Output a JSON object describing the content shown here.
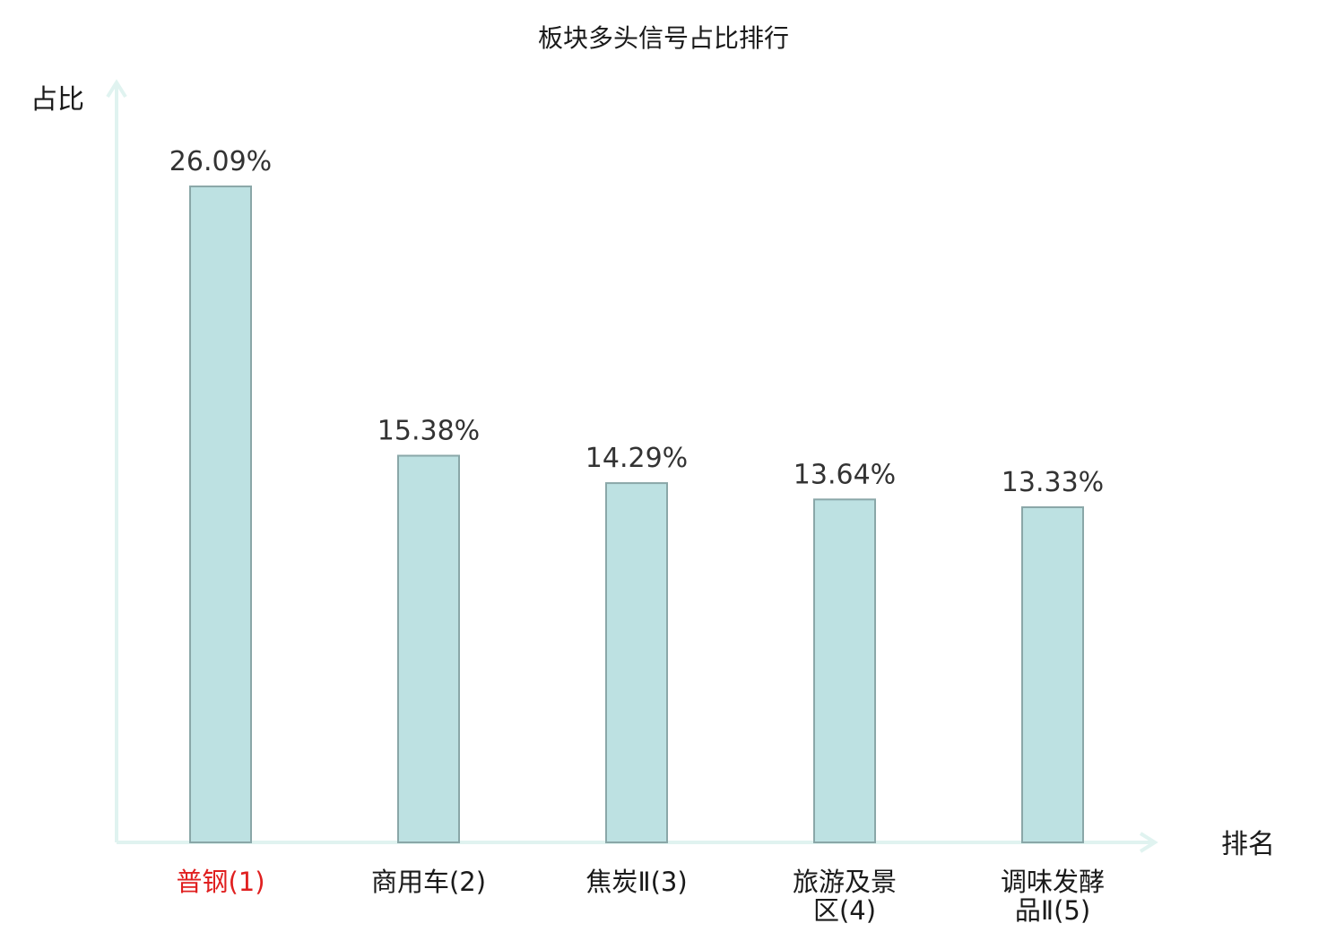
{
  "chart_data": {
    "type": "bar",
    "title": "板块多头信号占比排行",
    "xlabel": "排名",
    "ylabel": "占比",
    "categories": [
      {
        "lines": [
          "普钢(1)"
        ],
        "highlight": true
      },
      {
        "lines": [
          "商用车(2)"
        ],
        "highlight": false
      },
      {
        "lines": [
          "焦炭Ⅱ(3)"
        ],
        "highlight": false
      },
      {
        "lines": [
          "旅游及景",
          "区(4)"
        ],
        "highlight": false
      },
      {
        "lines": [
          "调味发酵",
          "品Ⅱ(5)"
        ],
        "highlight": false
      }
    ],
    "values": [
      26.09,
      15.38,
      14.29,
      13.64,
      13.33
    ],
    "value_labels": [
      "26.09%",
      "15.38%",
      "14.29%",
      "13.64%",
      "13.33%"
    ],
    "ylim": [
      0,
      28.8
    ],
    "grid": false,
    "legend": "none"
  },
  "colors": {
    "bar_fill": "#bde1e2",
    "bar_stroke": "#8aa7a8",
    "axis": "#e0f3f0",
    "highlight_text": "#e02020",
    "normal_text": "#1a1a1a"
  }
}
